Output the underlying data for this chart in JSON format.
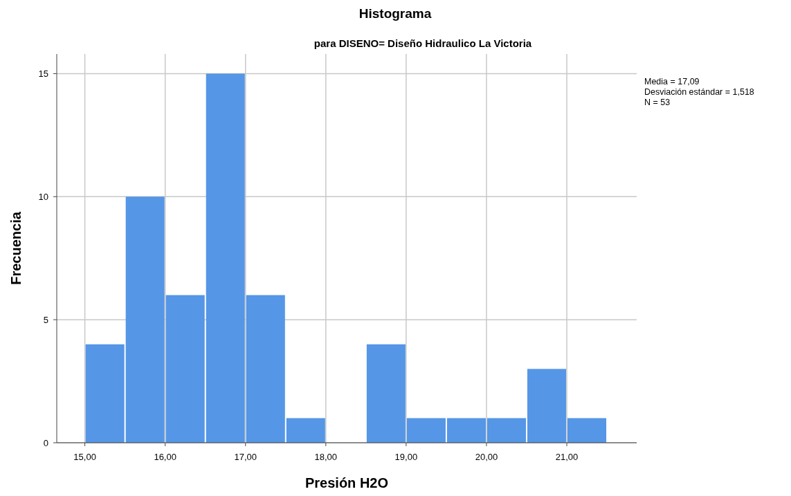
{
  "chart_data": {
    "type": "histogram",
    "title": "Histograma",
    "subtitle": "para DISENO= Diseño Hidraulico La Victoria",
    "xlabel": "Presión H2O",
    "ylabel": "Frecuencia",
    "bins": [
      15.0,
      15.5,
      16.0,
      16.5,
      17.0,
      17.5,
      18.0,
      18.5,
      19.0,
      19.5,
      20.0,
      20.5,
      21.0,
      21.5
    ],
    "values": [
      4,
      10,
      6,
      15,
      6,
      1,
      0,
      4,
      1,
      1,
      1,
      3,
      1
    ],
    "color": "#5596e6",
    "xlim": [
      14.65,
      21.87
    ],
    "xticks": [
      {
        "value": 15,
        "label": "15,00"
      },
      {
        "value": 16,
        "label": "16,00"
      },
      {
        "value": 17,
        "label": "17,00"
      },
      {
        "value": 18,
        "label": "18,00"
      },
      {
        "value": 19,
        "label": "19,00"
      },
      {
        "value": 20,
        "label": "20,00"
      },
      {
        "value": 21,
        "label": "21,00"
      }
    ],
    "ylim": [
      0,
      15.8
    ],
    "yticks": [
      0,
      5,
      10,
      15
    ],
    "grid": true,
    "annotations": [
      "Media = 17,09",
      "Desviación estándar = 1,518",
      "N = 53"
    ]
  }
}
